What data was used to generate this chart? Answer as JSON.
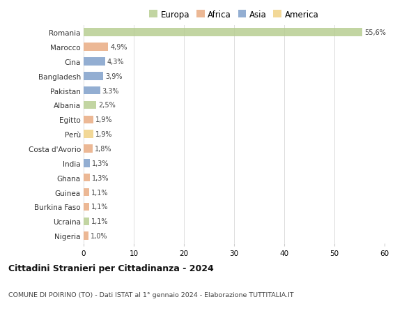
{
  "countries": [
    "Romania",
    "Marocco",
    "Cina",
    "Bangladesh",
    "Pakistan",
    "Albania",
    "Egitto",
    "Perù",
    "Costa d'Avorio",
    "India",
    "Ghana",
    "Guinea",
    "Burkina Faso",
    "Ucraina",
    "Nigeria"
  ],
  "values": [
    55.6,
    4.9,
    4.3,
    3.9,
    3.3,
    2.5,
    1.9,
    1.9,
    1.8,
    1.3,
    1.3,
    1.1,
    1.1,
    1.1,
    1.0
  ],
  "labels": [
    "55,6%",
    "4,9%",
    "4,3%",
    "3,9%",
    "3,3%",
    "2,5%",
    "1,9%",
    "1,9%",
    "1,8%",
    "1,3%",
    "1,3%",
    "1,1%",
    "1,1%",
    "1,1%",
    "1,0%"
  ],
  "continents": [
    "Europa",
    "Africa",
    "Asia",
    "Asia",
    "Asia",
    "Europa",
    "Africa",
    "America",
    "Africa",
    "Asia",
    "Africa",
    "Africa",
    "Africa",
    "Europa",
    "Africa"
  ],
  "continent_colors": {
    "Europa": "#b5cc8e",
    "Africa": "#e8a97e",
    "Asia": "#7b9dc9",
    "America": "#f0d080"
  },
  "legend_order": [
    "Europa",
    "Africa",
    "Asia",
    "America"
  ],
  "title": "Cittadini Stranieri per Cittadinanza - 2024",
  "subtitle": "COMUNE DI POIRINO (TO) - Dati ISTAT al 1° gennaio 2024 - Elaborazione TUTTITALIA.IT",
  "xlim": [
    0,
    60
  ],
  "xticks": [
    0,
    10,
    20,
    30,
    40,
    50,
    60
  ],
  "background_color": "#ffffff",
  "grid_color": "#dddddd",
  "bar_height": 0.55
}
